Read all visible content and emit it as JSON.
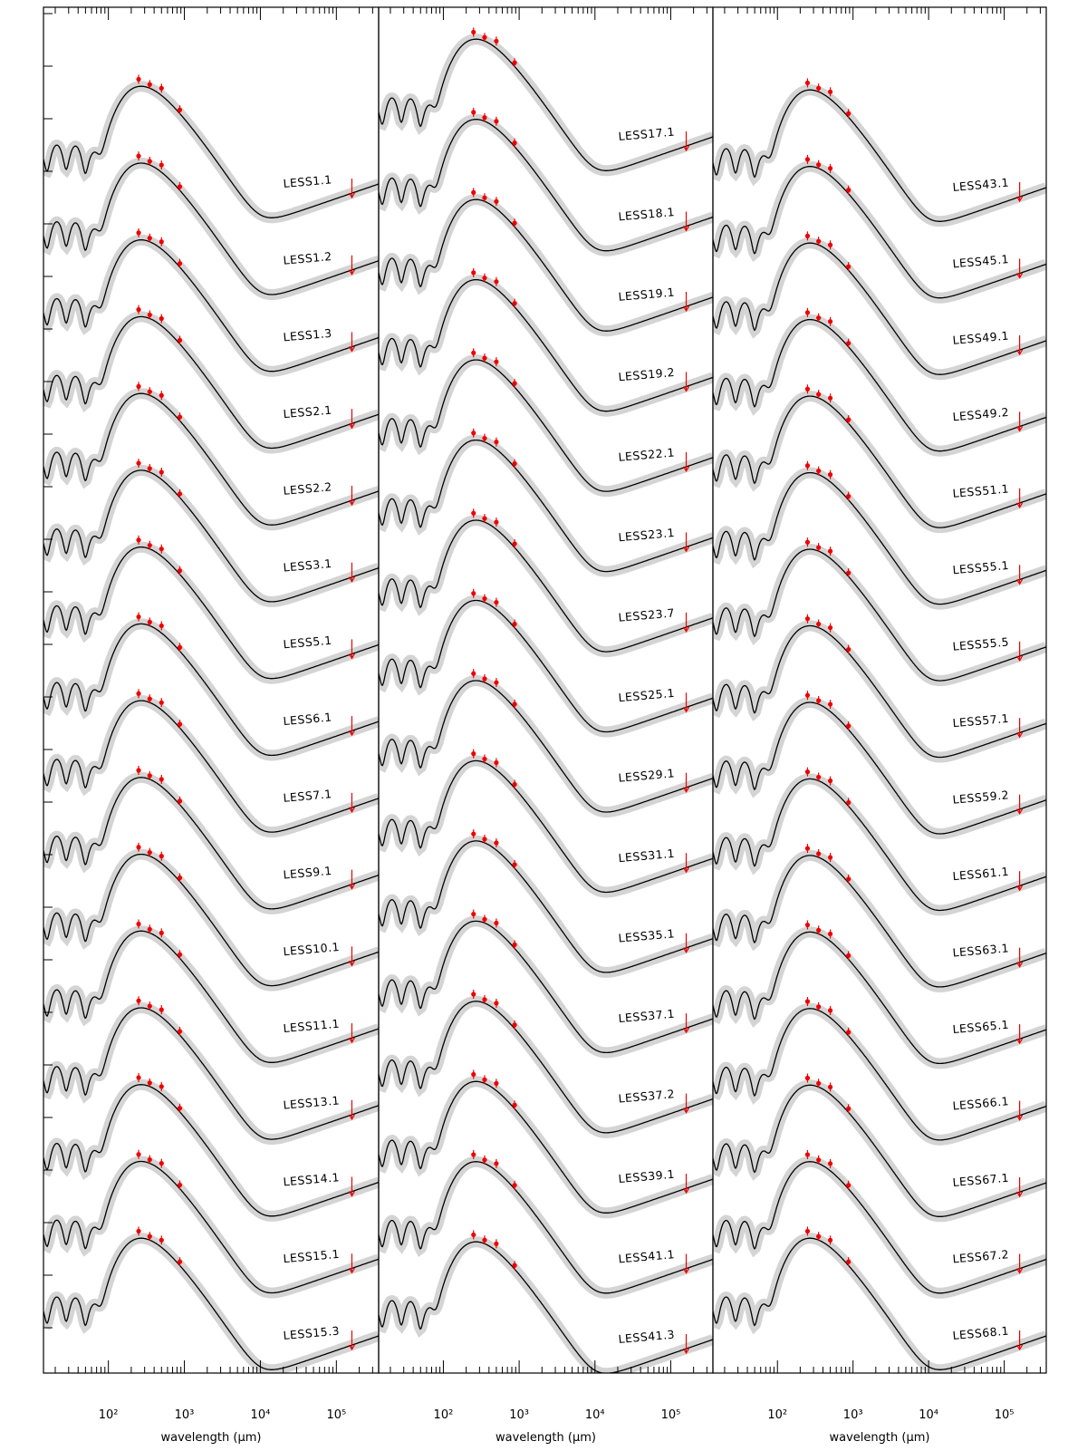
{
  "chart_data": [
    {
      "type": "line",
      "x_label": "wavelength (µm)",
      "xscale": "log",
      "xlim": [
        14,
        360000
      ],
      "xticks": [
        {
          "value": 100,
          "label": "10²"
        },
        {
          "value": 1000,
          "label": "10³"
        },
        {
          "value": 10000,
          "label": "10⁴"
        },
        {
          "value": 100000,
          "label": "10⁵"
        }
      ],
      "labels": [
        "LESS1.1",
        "LESS1.2",
        "LESS1.3",
        "LESS2.1",
        "LESS2.2",
        "LESS3.1",
        "LESS5.1",
        "LESS6.1",
        "LESS7.1",
        "LESS9.1",
        "LESS10.1",
        "LESS11.1",
        "LESS13.1",
        "LESS14.1",
        "LESS15.1",
        "LESS15.3"
      ]
    },
    {
      "type": "line",
      "x_label": "wavelength (µm)",
      "xscale": "log",
      "xlim": [
        14,
        360000
      ],
      "xticks": [
        {
          "value": 100,
          "label": "10²"
        },
        {
          "value": 1000,
          "label": "10³"
        },
        {
          "value": 10000,
          "label": "10⁴"
        },
        {
          "value": 100000,
          "label": "10⁵"
        }
      ],
      "labels": [
        "LESS17.1",
        "LESS18.1",
        "LESS19.1",
        "LESS19.2",
        "LESS22.1",
        "LESS23.1",
        "LESS23.7",
        "LESS25.1",
        "LESS29.1",
        "LESS31.1",
        "LESS35.1",
        "LESS37.1",
        "LESS37.2",
        "LESS39.1",
        "LESS41.1",
        "LESS41.3"
      ]
    },
    {
      "type": "line",
      "x_label": "wavelength (µm)",
      "xscale": "log",
      "xlim": [
        14,
        360000
      ],
      "xticks": [
        {
          "value": 100,
          "label": "10²"
        },
        {
          "value": 1000,
          "label": "10³"
        },
        {
          "value": 10000,
          "label": "10⁴"
        },
        {
          "value": 100000,
          "label": "10⁵"
        }
      ],
      "labels": [
        "LESS43.1",
        "LESS45.1",
        "LESS49.1",
        "LESS49.2",
        "LESS51.1",
        "LESS55.1",
        "LESS55.5",
        "LESS57.1",
        "LESS59.2",
        "LESS61.1",
        "LESS63.1",
        "LESS65.1",
        "LESS66.1",
        "LESS67.1",
        "LESS67.2",
        "LESS68.1"
      ]
    }
  ]
}
